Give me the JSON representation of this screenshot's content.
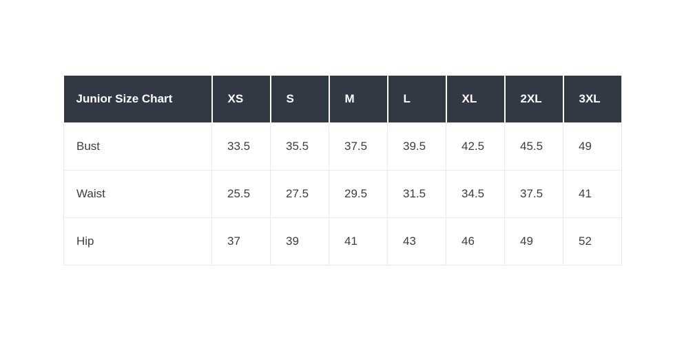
{
  "colors": {
    "header_bg": "#333944",
    "header_text": "#ffffff",
    "header_divider": "#ffffff",
    "body_bg": "#ffffff",
    "body_text": "#3d3d3d",
    "grid_line": "#e9e9e9"
  },
  "table": {
    "title": "Junior Size Chart",
    "columns": [
      "XS",
      "S",
      "M",
      "L",
      "XL",
      "2XL",
      "3XL"
    ],
    "rows": [
      {
        "label": "Bust",
        "values": [
          "33.5",
          "35.5",
          "37.5",
          "39.5",
          "42.5",
          "45.5",
          "49"
        ]
      },
      {
        "label": "Waist",
        "values": [
          "25.5",
          "27.5",
          "29.5",
          "31.5",
          "34.5",
          "37.5",
          "41"
        ]
      },
      {
        "label": "Hip",
        "values": [
          "37",
          "39",
          "41",
          "43",
          "46",
          "49",
          "52"
        ]
      }
    ]
  },
  "chart_data": {
    "type": "table",
    "title": "Junior Size Chart",
    "categories": [
      "XS",
      "S",
      "M",
      "L",
      "XL",
      "2XL",
      "3XL"
    ],
    "series": [
      {
        "name": "Bust",
        "values": [
          33.5,
          35.5,
          37.5,
          39.5,
          42.5,
          45.5,
          49
        ]
      },
      {
        "name": "Waist",
        "values": [
          25.5,
          27.5,
          29.5,
          31.5,
          34.5,
          37.5,
          41
        ]
      },
      {
        "name": "Hip",
        "values": [
          37,
          39,
          41,
          43,
          46,
          49,
          52
        ]
      }
    ]
  }
}
